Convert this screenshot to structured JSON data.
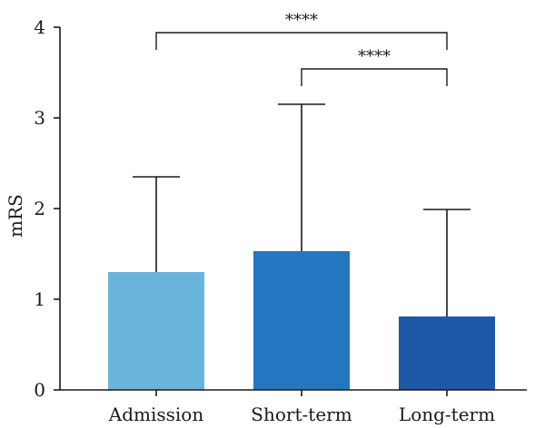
{
  "chart_data": {
    "type": "bar",
    "categories": [
      "Admission",
      "Short-term",
      "Long-term"
    ],
    "values": [
      1.3,
      1.53,
      0.81
    ],
    "error_upper": [
      2.35,
      3.15,
      1.99
    ],
    "colors": [
      "#6ab5db",
      "#2277c0",
      "#1f58a8"
    ],
    "title": "",
    "xlabel": "",
    "ylabel": "mRS",
    "ylim": [
      0,
      4
    ],
    "yticks": [
      0,
      1,
      2,
      3,
      4
    ],
    "grid": false,
    "significance": [
      {
        "from": 0,
        "to": 2,
        "label": "****"
      },
      {
        "from": 1,
        "to": 2,
        "label": "****"
      }
    ]
  }
}
